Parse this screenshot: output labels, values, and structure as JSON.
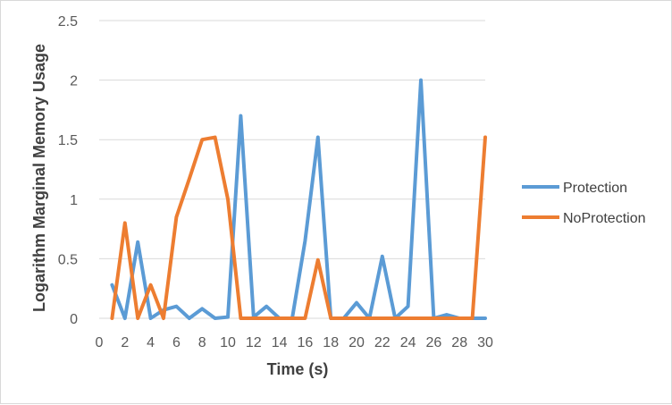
{
  "chart_data": {
    "type": "line",
    "title": "",
    "xlabel": "Time (s)",
    "ylabel": "Logarithm Marginal Memory Usage",
    "xlim": [
      0,
      30
    ],
    "ylim": [
      0,
      2.5
    ],
    "x_ticks": [
      "0",
      "2",
      "4",
      "6",
      "8",
      "10",
      "12",
      "14",
      "16",
      "18",
      "20",
      "22",
      "24",
      "26",
      "28",
      "30"
    ],
    "y_ticks": [
      "0",
      "0.5",
      "1",
      "1.5",
      "2",
      "2.5"
    ],
    "grid": "horizontal",
    "legend_position": "right",
    "x": [
      1,
      2,
      3,
      4,
      5,
      6,
      7,
      8,
      9,
      10,
      11,
      12,
      13,
      14,
      15,
      16,
      17,
      18,
      19,
      20,
      21,
      22,
      23,
      24,
      25,
      26,
      27,
      28,
      29,
      30
    ],
    "series": [
      {
        "name": "Protection",
        "color": "#5b9bd5",
        "values": [
          0.28,
          0,
          0.64,
          0,
          0.07,
          0.1,
          0,
          0.08,
          0,
          0.01,
          1.7,
          0.01,
          0.1,
          0,
          0,
          0.65,
          1.52,
          0,
          0,
          0.13,
          0,
          0.52,
          0,
          0.1,
          2.0,
          0,
          0.03,
          0,
          0,
          0
        ]
      },
      {
        "name": "NoProtection",
        "color": "#ed7d31",
        "values": [
          0,
          0.8,
          0,
          0.28,
          0,
          0.85,
          1.17,
          1.5,
          1.52,
          1.0,
          0,
          0,
          0,
          0,
          0,
          0,
          0.49,
          0,
          0,
          0,
          0,
          0,
          0,
          0,
          0,
          0,
          0,
          0,
          0,
          1.52
        ]
      }
    ]
  }
}
